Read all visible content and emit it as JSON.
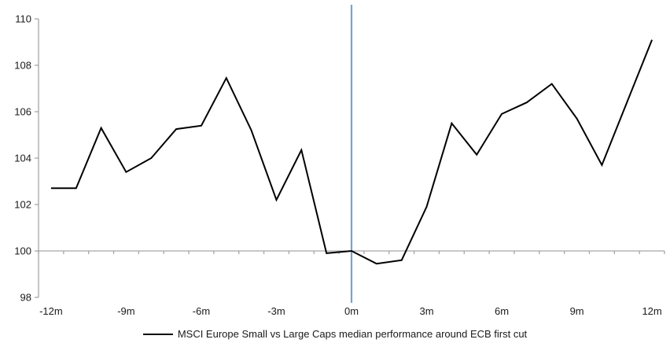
{
  "chart_data": {
    "type": "line",
    "title": "",
    "xlabel": "",
    "ylabel": "",
    "x_months": [
      -12,
      -11,
      -10,
      -9,
      -8,
      -7,
      -6,
      -5,
      -4,
      -3,
      -2,
      -1,
      0,
      1,
      2,
      3,
      4,
      5,
      6,
      7,
      8,
      9,
      10,
      11,
      12
    ],
    "series": [
      {
        "name": "MSCI Europe Small vs Large Caps median performance around ECB first cut",
        "color": "#000000",
        "values": [
          102.7,
          102.7,
          105.3,
          103.4,
          104.0,
          105.25,
          105.4,
          107.45,
          105.2,
          102.2,
          104.35,
          99.9,
          100.0,
          99.45,
          99.6,
          101.9,
          105.5,
          104.15,
          105.9,
          106.4,
          107.2,
          105.7,
          103.7,
          106.4,
          109.1
        ]
      }
    ],
    "ylim": [
      98,
      110
    ],
    "yticks": [
      98,
      100,
      102,
      104,
      106,
      108,
      110
    ],
    "xtick_months": [
      -12,
      -9,
      -6,
      -3,
      0,
      3,
      6,
      9,
      12
    ],
    "xtick_labels": [
      "-12m",
      "-9m",
      "-6m",
      "-3m",
      "0m",
      "3m",
      "6m",
      "9m",
      "12m"
    ],
    "grid": false,
    "legend_position": "bottom-center",
    "axes": {
      "axis_color": "#a6a6a6",
      "text_color": "#1a1a1a",
      "baseline_value": 100
    },
    "event_line": {
      "x_month": 0,
      "color": "#79a3cf",
      "meaning": "ECB first cut (0m)"
    }
  }
}
